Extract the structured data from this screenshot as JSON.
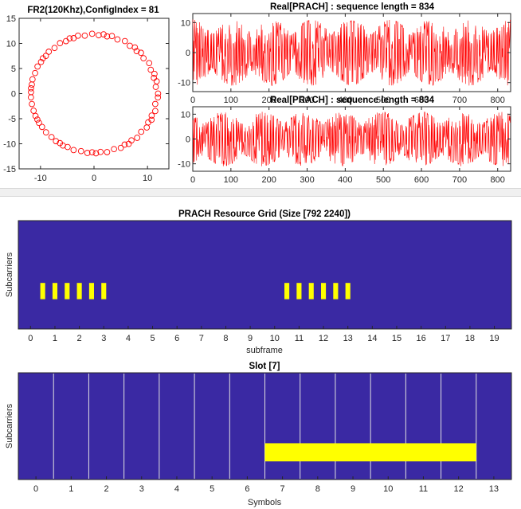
{
  "chart_data": [
    {
      "id": "constellation",
      "type": "scatter",
      "title": "FR2(120Khz),ConfigIndex = 81",
      "xlabel": "",
      "ylabel": "",
      "xlim": [
        -14,
        14
      ],
      "ylim": [
        -15,
        15
      ],
      "xticks": [
        -10,
        0,
        10
      ],
      "yticks": [
        -15,
        -10,
        -5,
        0,
        5,
        10,
        15
      ],
      "marker": "circle-open",
      "color": "#ff0000",
      "radius": 11.8,
      "num_points": 70
    },
    {
      "id": "prach-real-1",
      "type": "line",
      "title": "Real[PRACH] : sequence length = 834",
      "xlabel": "",
      "ylabel": "",
      "xlim": [
        0,
        834
      ],
      "ylim": [
        -13,
        13
      ],
      "xticks": [
        0,
        100,
        200,
        300,
        400,
        500,
        600,
        700,
        800
      ],
      "yticks": [
        -10,
        0,
        10
      ],
      "color": "#ff0000",
      "num_samples": 834,
      "amplitude": 11
    },
    {
      "id": "prach-real-2",
      "type": "line",
      "title": "Real[PRACH] : sequence length = 834",
      "xlabel": "",
      "ylabel": "",
      "xlim": [
        0,
        834
      ],
      "ylim": [
        -13,
        13
      ],
      "xticks": [
        0,
        100,
        200,
        300,
        400,
        500,
        600,
        700,
        800
      ],
      "yticks": [
        -10,
        0,
        10
      ],
      "color": "#ff0000",
      "num_samples": 834,
      "amplitude": 11
    },
    {
      "id": "resource-grid",
      "type": "heatmap",
      "title": "PRACH Resource Grid (Size [792 2240])",
      "xlabel": "subframe",
      "ylabel": "Subcarriers",
      "xlim": [
        -0.5,
        19.7
      ],
      "xticks": [
        0,
        1,
        2,
        3,
        4,
        5,
        6,
        7,
        8,
        9,
        10,
        11,
        12,
        13,
        14,
        15,
        16,
        17,
        18,
        19
      ],
      "background": "#3a29a3",
      "highlight": "#ffff00",
      "occupied_band": [
        0.275,
        0.425
      ],
      "occupied_positions": [
        0.5,
        1.0,
        1.5,
        2.0,
        2.5,
        3.0,
        10.5,
        11.0,
        11.5,
        12.0,
        12.5,
        13.0
      ],
      "occupied_width": 0.2
    },
    {
      "id": "slot",
      "type": "heatmap",
      "title": "Slot [7]",
      "xlabel": "Symbols",
      "ylabel": "Subcarriers",
      "xlim": [
        -0.5,
        13.5
      ],
      "xticks": [
        0,
        1,
        2,
        3,
        4,
        5,
        6,
        7,
        8,
        9,
        10,
        11,
        12,
        13
      ],
      "background": "#3a29a3",
      "highlight": "#ffff00",
      "gridline": "#e0e0e0",
      "symbol_boundaries": [
        0.5,
        1.5,
        2.5,
        3.5,
        4.5,
        5.5,
        6.5,
        7.5,
        8.5,
        9.5,
        10.5,
        11.5,
        12.5
      ],
      "occupied_band": [
        0.17,
        0.34
      ],
      "occupied_range": [
        6.5,
        12.5
      ]
    }
  ]
}
